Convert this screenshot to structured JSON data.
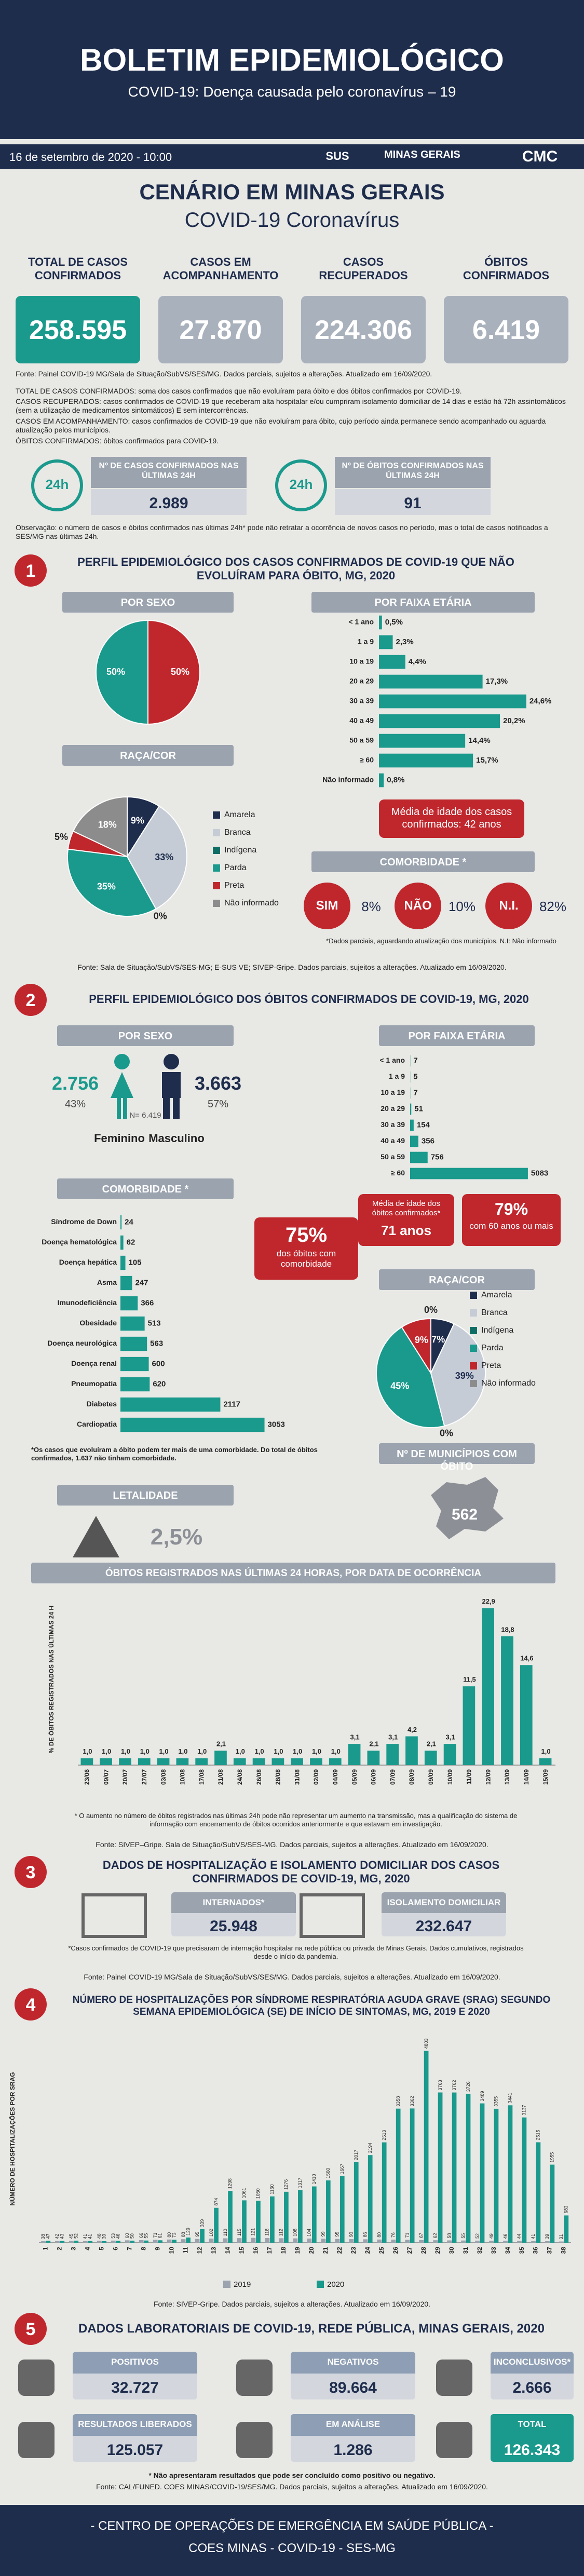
{
  "header": {
    "title": "BOLETIM EPIDEMIOLÓGICO",
    "subtitle": "COVID-19: Doença causada pelo coronavírus – 19",
    "date": "16 de setembro de 2020 - 10:00",
    "logo_sus": "SUS",
    "logo_mg": "MINAS GERAIS",
    "logo_cmc": "CMC"
  },
  "scenario": {
    "title": "CENÁRIO EM MINAS GERAIS",
    "subtitle": "COVID-19 Coronavírus",
    "kpis": [
      {
        "label": "TOTAL DE CASOS CONFIRMADOS",
        "value": "258.595"
      },
      {
        "label": "CASOS EM ACOMPANHAMENTO",
        "value": "27.870"
      },
      {
        "label": "CASOS RECUPERADOS",
        "value": "224.306"
      },
      {
        "label": "ÓBITOS CONFIRMADOS",
        "value": "6.419"
      }
    ],
    "source": "Fonte: Painel COVID-19 MG/Sala de Situação/SubVS/SES/MG. Dados parciais, sujeitos a alterações. Atualizado em 16/09/2020.",
    "definitions": [
      "TOTAL DE CASOS CONFIRMADOS: soma dos casos confirmados que não evoluíram para óbito e dos óbitos confirmados por COVID-19.",
      "CASOS RECUPERADOS: casos confirmados de COVID-19 que receberam alta hospitalar e/ou cumpriram isolamento domiciliar de 14 dias e estão há 72h assintomáticos (sem a utilização de medicamentos sintomáticos) E sem intercorrências.",
      "CASOS EM ACOMPANHAMENTO: casos confirmados de COVID-19 que não evoluíram para óbito, cujo período ainda permanece sendo acompanhado ou aguarda atualização pelos municípios.",
      "ÓBITOS CONFIRMADOS: óbitos confirmados para COVID-19."
    ],
    "icon_label": "24h",
    "last24": [
      {
        "label": "Nº DE CASOS CONFIRMADOS NAS ÚLTIMAS 24H",
        "value": "2.989"
      },
      {
        "label": "Nº DE ÓBITOS CONFIRMADOS NAS ÚLTIMAS 24H",
        "value": "91"
      }
    ],
    "note": "Observação: o número de casos e óbitos confirmados nas últimas 24h* pode não retratar a ocorrência de novos casos no período, mas o total de casos notificados a SES/MG nas últimas 24h."
  },
  "section1": {
    "number": "1",
    "title": "PERFIL EPIDEMIOLÓGICO DOS CASOS CONFIRMADOS DE COVID-19 QUE NÃO EVOLUÍRAM PARA ÓBITO, MG, 2020",
    "avg_age": "Média de idade dos casos confirmados: 42 anos",
    "comorbidity": {
      "title": "COMORBIDADE *",
      "items": [
        {
          "label": "SIM",
          "value": "8%"
        },
        {
          "label": "NÃO",
          "value": "10%"
        },
        {
          "label": "N.I.",
          "value": "82%"
        }
      ]
    },
    "note": "*Dados parciais, aguardando atualização dos municípios. N.I: Não informado",
    "source": "Fonte: Sala de Situação/SubVS/SES-MG; E-SUS VE; SIVEP-Gripe. Dados parciais, sujeitos a alterações. Atualizado em 16/09/2020."
  },
  "section2": {
    "number": "2",
    "title": "PERFIL EPIDEMIOLÓGICO DOS ÓBITOS CONFIRMADOS DE COVID-19, MG, 2020",
    "sex": {
      "title": "POR SEXO",
      "female": {
        "value": "2.756",
        "pct": "43%",
        "label": "Feminino"
      },
      "male": {
        "value": "3.663",
        "pct": "57%",
        "label": "Masculino"
      },
      "total": "N= 6.419"
    },
    "avg_age": {
      "label": "Média de idade dos óbitos confirmados*",
      "value": "71 anos"
    },
    "over60": {
      "value": "79%",
      "label": "com 60 anos ou mais"
    },
    "comorb_share": {
      "value": "75%",
      "label": "dos óbitos com comorbidade"
    },
    "note": "*Os casos que evoluíram a óbito podem ter mais de uma comorbidade. Do total de óbitos confirmados, 1.637 não tinham comorbidade.",
    "municipalities": {
      "title": "Nº DE MUNICÍPIOS COM ÓBITO",
      "value": "562"
    },
    "lethality": {
      "title": "LETALIDADE",
      "value": "2,5%"
    },
    "source": "Fonte: Sala de Situação/SubVS/SES-MG; E-SUS VE; SIVEP-Gripe. Dados parciais, sujeitos a alterações. Atualizado em 16/09/2020."
  },
  "deaths24h": {
    "note": "* O aumento no número de óbitos registrados nas últimas 24h pode não representar um aumento na transmissão, mas a qualificação do sistema de informação com encerramento de óbitos ocorridos anteriormente e que estavam em investigação.",
    "source": "Fonte: SIVEP–Gripe. Sala de Situação/SubVS/SES-MG. Dados parciais, sujeitos a alterações. Atualizado em 16/09/2020."
  },
  "section3": {
    "number": "3",
    "title": "DADOS DE HOSPITALIZAÇÃO E ISOLAMENTO DOMICILIAR DOS CASOS CONFIRMADOS DE COVID-19, MG, 2020",
    "boxes": [
      {
        "label": "INTERNADOS*",
        "value": "25.948"
      },
      {
        "label": "ISOLAMENTO DOMICILIAR",
        "value": "232.647"
      }
    ],
    "note": "*Casos confirmados de COVID-19 que precisaram de internação hospitalar na rede pública ou privada de Minas Gerais. Dados cumulativos, registrados desde o início da pandemia.",
    "source": "Fonte: Painel COVID-19 MG/Sala de Situação/SubVS/SES/MG. Dados parciais, sujeitos a alterações. Atualizado em 16/09/2020."
  },
  "section4": {
    "number": "4",
    "title": "NÚMERO DE HOSPITALIZAÇÕES POR SÍNDROME RESPIRATÓRIA AGUDA GRAVE (SRAG) SEGUNDO SEMANA EPIDEMIOLÓGICA (SE) DE INÍCIO DE SINTOMAS, MG, 2019 E 2020",
    "source": "Fonte: SIVEP-Gripe. Dados parciais, sujeitos a alterações. Atualizado em 16/09/2020."
  },
  "section5": {
    "number": "5",
    "title": "DADOS LABORATORIAIS DE COVID-19, REDE PÚBLICA, MINAS GERAIS, 2020",
    "boxes": [
      {
        "label": "POSITIVOS",
        "value": "32.727"
      },
      {
        "label": "NEGATIVOS",
        "value": "89.664"
      },
      {
        "label": "INCONCLUSIVOS*",
        "value": "2.666"
      },
      {
        "label": "RESULTADOS LIBERADOS",
        "value": "125.057"
      },
      {
        "label": "EM ANÁLISE",
        "value": "1.286"
      },
      {
        "label": "TOTAL",
        "value": "126.343"
      }
    ],
    "note": "* Não apresentaram resultados que pode ser concluído como positivo ou negativo.",
    "source": "Fonte: CAL/FUNED. COES MINAS/COVID-19/SES/MG. Dados parciais, sujeitos a alterações. Atualizado em 16/09/2020."
  },
  "footer": {
    "line1": "- CENTRO DE OPERAÇÕES DE EMERGÊNCIA EM SAÚDE PÚBLICA -",
    "line2": "COES MINAS - COVID-19 - SES-MG"
  },
  "chart_data": [
    {
      "type": "pie",
      "title": "POR SEXO",
      "values": [
        50,
        50
      ],
      "value_labels": [
        "50%",
        "50%"
      ],
      "colors": [
        "#c0272d",
        "#1a9a8c"
      ]
    },
    {
      "type": "bar",
      "horizontal": true,
      "title": "POR FAIXA ETÁRIA",
      "categories": [
        "< 1 ano",
        "1 a 9",
        "10 a 19",
        "20 a 29",
        "30 a 39",
        "40 a 49",
        "50 a 59",
        "≥ 60",
        "Não informado"
      ],
      "values": [
        0.5,
        2.3,
        4.4,
        17.3,
        24.6,
        20.2,
        14.4,
        15.7,
        0.8
      ],
      "value_labels": [
        "0,5%",
        "2,3%",
        "4,4%",
        "17,3%",
        "24,6%",
        "20,2%",
        "14,4%",
        "15,7%",
        "0,8%"
      ],
      "xlim": [
        0,
        26
      ],
      "color": "#1a9a8c"
    },
    {
      "type": "pie",
      "title": "RAÇA/COR",
      "categories": [
        "Amarela",
        "Branca",
        "Indígena",
        "Parda",
        "Preta",
        "Não informado"
      ],
      "values": [
        9,
        33,
        0,
        35,
        5,
        18
      ],
      "value_labels": [
        "9%",
        "33%",
        "0%",
        "35%",
        "5%",
        "18%"
      ],
      "colors": [
        "#1f2d4d",
        "#c5ccd6",
        "#0e6e66",
        "#1a9a8c",
        "#c0272d",
        "#8c8c8c"
      ]
    },
    {
      "type": "bar",
      "horizontal": true,
      "title": "POR FAIXA ETÁRIA",
      "categories": [
        "< 1 ano",
        "1 a 9",
        "10 a 19",
        "20 a 29",
        "30 a 39",
        "40 a 49",
        "50 a 59",
        "≥ 60"
      ],
      "values": [
        7,
        5,
        7,
        51,
        154,
        356,
        756,
        5083
      ],
      "xlim": [
        0,
        5600
      ],
      "color": "#1a9a8c"
    },
    {
      "type": "bar",
      "horizontal": true,
      "title": "COMORBIDADE *",
      "categories": [
        "Síndrome de Down",
        "Doença hematológica",
        "Doença hepática",
        "Asma",
        "Imunodeficiência",
        "Obesidade",
        "Doença neurológica",
        "Doença renal",
        "Pneumopatia",
        "Diabetes",
        "Cardiopatia"
      ],
      "values": [
        24,
        62,
        105,
        247,
        366,
        513,
        563,
        600,
        620,
        2117,
        3053
      ],
      "xlim": [
        0,
        3300
      ],
      "color": "#1a9a8c"
    },
    {
      "type": "pie",
      "title": "RAÇA/COR",
      "categories": [
        "Amarela",
        "Branca",
        "Indígena",
        "Parda",
        "Preta",
        "Não informado"
      ],
      "values": [
        7,
        39,
        0,
        45,
        9,
        0
      ],
      "value_labels": [
        "7%",
        "39%",
        "0%",
        "45%",
        "9%",
        "0%"
      ],
      "colors": [
        "#1f2d4d",
        "#c5ccd6",
        "#0e6e66",
        "#1a9a8c",
        "#c0272d",
        "#8c8c8c"
      ]
    },
    {
      "type": "bar",
      "title": "ÓBITOS REGISTRADOS NAS ÚLTIMAS 24 HORAS, POR DATA DE OCORRÊNCIA",
      "y_label": "% DE ÓBITOS REGISTRADOS NAS ÚLTIMAS 24 H",
      "categories": [
        "23/06",
        "09/07",
        "20/07",
        "27/07",
        "03/08",
        "10/08",
        "17/08",
        "21/08",
        "24/08",
        "26/08",
        "28/08",
        "31/08",
        "02/09",
        "04/09",
        "05/09",
        "06/09",
        "07/09",
        "08/09",
        "09/09",
        "10/09",
        "11/09",
        "12/09",
        "13/09",
        "14/09",
        "15/09"
      ],
      "values": [
        1.0,
        1.0,
        1.0,
        1.0,
        1.0,
        1.0,
        1.0,
        2.1,
        1.0,
        1.0,
        1.0,
        1.0,
        1.0,
        1.0,
        3.1,
        2.1,
        3.1,
        4.2,
        2.1,
        3.1,
        11.5,
        22.9,
        18.8,
        14.6,
        1.0
      ],
      "value_labels": [
        "1,0",
        "1,0",
        "1,0",
        "1,0",
        "1,0",
        "1,0",
        "1,0",
        "2,1",
        "1,0",
        "1,0",
        "1,0",
        "1,0",
        "1,0",
        "1,0",
        "3,1",
        "2,1",
        "3,1",
        "4,2",
        "2,1",
        "3,1",
        "11,5",
        "22,9",
        "18,8",
        "14,6",
        "1,0"
      ],
      "ylim": [
        0,
        25
      ],
      "color": "#1a9a8c"
    },
    {
      "type": "bar",
      "y_label": "NÚMERO DE HOSPITALIZAÇÕES POR SRAG",
      "categories": [
        "1",
        "2",
        "3",
        "4",
        "5",
        "6",
        "7",
        "8",
        "9",
        "10",
        "11",
        "12",
        "13",
        "14",
        "15",
        "16",
        "17",
        "18",
        "19",
        "20",
        "21",
        "22",
        "23",
        "24",
        "25",
        "26",
        "27",
        "28",
        "29",
        "30",
        "31",
        "32",
        "33",
        "34",
        "35",
        "36",
        "37",
        "38"
      ],
      "ylim": [
        0,
        5200
      ],
      "series": [
        {
          "name": "2019",
          "color": "#9aa3ae",
          "values": [
            38,
            42,
            45,
            41,
            48,
            53,
            60,
            66,
            71,
            80,
            88,
            95,
            102,
            110,
            115,
            121,
            118,
            112,
            108,
            104,
            99,
            95,
            90,
            86,
            80,
            76,
            71,
            67,
            62,
            58,
            55,
            52,
            49,
            46,
            44,
            41,
            39,
            31
          ]
        },
        {
          "name": "2020",
          "color": "#1a9a8c",
          "values": [
            47,
            43,
            52,
            41,
            39,
            46,
            50,
            55,
            61,
            73,
            129,
            339,
            874,
            1298,
            1061,
            1050,
            1160,
            1276,
            1317,
            1410,
            1560,
            1667,
            2017,
            2194,
            2513,
            3358,
            3362,
            4803,
            3763,
            3762,
            3726,
            3489,
            3355,
            3441,
            3137,
            2515,
            1955,
            683
          ]
        }
      ]
    }
  ]
}
